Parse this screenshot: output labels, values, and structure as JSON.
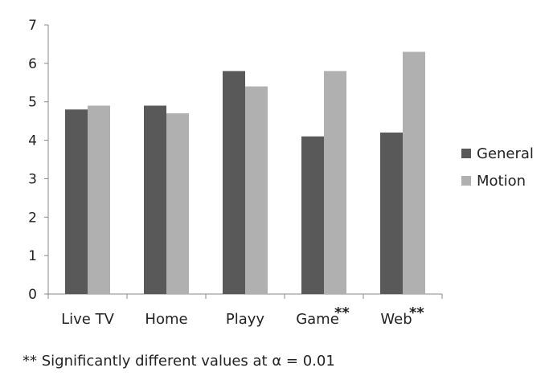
{
  "chart_data": {
    "type": "bar",
    "categories": [
      "Live TV",
      "Home",
      "Playy",
      "Game",
      "Web"
    ],
    "category_marks": [
      "",
      "",
      "",
      "**",
      "**"
    ],
    "series": [
      {
        "name": "General",
        "values": [
          4.8,
          4.9,
          5.8,
          4.1,
          4.2
        ],
        "color": "#595959"
      },
      {
        "name": "Motion",
        "values": [
          4.9,
          4.7,
          5.4,
          5.8,
          6.3
        ],
        "color": "#b0b0b0"
      }
    ],
    "ylim": [
      0,
      7
    ],
    "yticks": [
      0,
      1,
      2,
      3,
      4,
      5,
      6,
      7
    ],
    "grid": false,
    "legend_position": "right",
    "xlabel": "",
    "ylabel": ""
  },
  "footnote": "** Significantly different values at α = 0.01"
}
